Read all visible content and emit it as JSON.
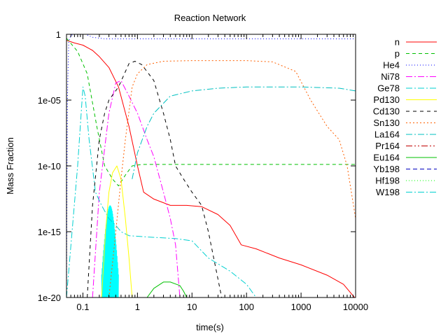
{
  "chart_data": {
    "type": "line",
    "title": "Reaction Network",
    "xlabel": "time(s)",
    "ylabel": "Mass Fraction",
    "xscale": "log",
    "yscale": "log",
    "xlim": [
      0.05,
      10000
    ],
    "ylim": [
      1e-20,
      1
    ],
    "xticks": [
      {
        "v": 0.1,
        "label": "0.1"
      },
      {
        "v": 1,
        "label": "1"
      },
      {
        "v": 10,
        "label": "10"
      },
      {
        "v": 100,
        "label": "100"
      },
      {
        "v": 1000,
        "label": "1000"
      },
      {
        "v": 10000,
        "label": "10000"
      }
    ],
    "yticks": [
      {
        "v": 1,
        "label": "1"
      },
      {
        "v": 1e-05,
        "label": "1e-05"
      },
      {
        "v": 1e-10,
        "label": "1e-10"
      },
      {
        "v": 1e-15,
        "label": "1e-15"
      },
      {
        "v": 1e-20,
        "label": "1e-20"
      }
    ],
    "grid": false,
    "legend_position": "right",
    "series": [
      {
        "name": "n",
        "color": "#ff0000",
        "dash": "",
        "points": [
          [
            0.05,
            0.35
          ],
          [
            0.07,
            0.22
          ],
          [
            0.1,
            0.15
          ],
          [
            0.15,
            0.06
          ],
          [
            0.2,
            0.02
          ],
          [
            0.3,
            0.003
          ],
          [
            0.45,
            0.0001
          ],
          [
            0.7,
            1e-07
          ],
          [
            1.0,
            1e-10
          ],
          [
            1.3,
            1e-12
          ],
          [
            2,
            3e-13
          ],
          [
            4,
            1e-13
          ],
          [
            8,
            1e-13
          ],
          [
            15,
            8e-14
          ],
          [
            30,
            2e-14
          ],
          [
            50,
            3e-15
          ],
          [
            80,
            1e-16
          ],
          [
            150,
            5e-17
          ],
          [
            400,
            1e-17
          ],
          [
            1000,
            3e-18
          ],
          [
            3000,
            5e-19
          ],
          [
            6000,
            1e-19
          ],
          [
            10000,
            8e-21
          ]
        ]
      },
      {
        "name": "p",
        "color": "#00c000",
        "dash": "5,4",
        "points": [
          [
            0.05,
            0.5
          ],
          [
            0.08,
            0.05
          ],
          [
            0.12,
            0.001
          ],
          [
            0.18,
            1e-07
          ],
          [
            0.25,
            1e-10
          ],
          [
            0.35,
            1e-11
          ],
          [
            0.45,
            3e-12
          ],
          [
            0.6,
            2e-11
          ],
          [
            0.8,
            1e-10
          ],
          [
            1.2,
            1.3e-10
          ],
          [
            10000,
            1.3e-10
          ]
        ]
      },
      {
        "name": "He4",
        "color": "#0000ff",
        "dash": "1,3",
        "points": [
          [
            0.05,
            1e-20
          ],
          [
            0.052,
            1e-05
          ],
          [
            0.055,
            0.3
          ],
          [
            0.06,
            0.8
          ],
          [
            0.08,
            1.4
          ],
          [
            0.1,
            1.2
          ],
          [
            0.15,
            0.6
          ],
          [
            0.25,
            0.45
          ],
          [
            0.5,
            0.45
          ],
          [
            10000,
            0.45
          ]
        ]
      },
      {
        "name": "Ni78",
        "color": "#ff00ff",
        "dash": "9,3,2,3",
        "points": [
          [
            0.15,
            1e-20
          ],
          [
            0.2,
            1e-12
          ],
          [
            0.3,
            1e-06
          ],
          [
            0.4,
            0.0002
          ],
          [
            0.5,
            0.0003
          ],
          [
            0.7,
            2e-05
          ],
          [
            1,
            1e-06
          ],
          [
            1.5,
            1e-08
          ],
          [
            2,
            5e-10
          ],
          [
            3,
            1e-12
          ],
          [
            4,
            1e-14
          ],
          [
            5,
            1e-16
          ],
          [
            6,
            1e-20
          ]
        ]
      },
      {
        "name": "Ge78",
        "color": "#00d0d0",
        "dash": "9,3,2,3",
        "points": [
          [
            0.05,
            1e-20
          ],
          [
            0.08,
            1e-10
          ],
          [
            0.1,
            0.0001
          ],
          [
            0.11,
            2e-05
          ],
          [
            0.13,
            1e-08
          ],
          [
            0.17,
            1e-12
          ],
          [
            0.22,
            1e-13
          ],
          [
            0.3,
            1e-14
          ],
          [
            0.4,
            3e-15
          ],
          [
            0.5,
            1e-15
          ],
          [
            0.7,
            5e-16
          ],
          [
            1.5,
            4e-16
          ],
          [
            5,
            3e-16
          ],
          [
            10,
            2e-16
          ],
          [
            20,
            1e-17
          ],
          [
            50,
            1e-18
          ],
          [
            100,
            1e-19
          ],
          [
            150,
            1e-20
          ]
        ]
      },
      {
        "name": "Pd130",
        "color": "#ffff00",
        "dash": "",
        "points": [
          [
            0.22,
            1e-20
          ],
          [
            0.26,
            1e-15
          ],
          [
            0.3,
            1e-12
          ],
          [
            0.35,
            3e-11
          ],
          [
            0.42,
            1e-10
          ],
          [
            0.5,
            1e-11
          ],
          [
            0.6,
            1e-14
          ],
          [
            0.7,
            1e-17
          ],
          [
            0.8,
            1e-20
          ]
        ]
      },
      {
        "name": "Cd130",
        "color": "#000000",
        "dash": "5,5",
        "points": [
          [
            0.12,
            1e-20
          ],
          [
            0.15,
            1e-13
          ],
          [
            0.2,
            1e-08
          ],
          [
            0.25,
            1e-06
          ],
          [
            0.3,
            1e-05
          ],
          [
            0.45,
            0.0001
          ],
          [
            0.7,
            0.006
          ],
          [
            0.9,
            0.009
          ],
          [
            1.2,
            0.005
          ],
          [
            2,
            0.0003
          ],
          [
            3,
            1e-06
          ],
          [
            4,
            1e-08
          ],
          [
            5,
            1e-10
          ],
          [
            7,
            1e-11
          ],
          [
            10,
            1e-12
          ],
          [
            15,
            1e-13
          ],
          [
            20,
            1e-15
          ],
          [
            28,
            1e-18
          ],
          [
            35,
            1e-20
          ]
        ]
      },
      {
        "name": "Sn130",
        "color": "#ff6000",
        "dash": "2,3",
        "points": [
          [
            0.3,
            1e-20
          ],
          [
            0.4,
            1e-15
          ],
          [
            0.5,
            1e-11
          ],
          [
            0.6,
            1e-08
          ],
          [
            0.8,
            0.0001
          ],
          [
            1,
            0.001
          ],
          [
            1.5,
            0.005
          ],
          [
            3,
            0.009
          ],
          [
            10,
            0.01
          ],
          [
            100,
            0.01
          ],
          [
            300,
            0.008
          ],
          [
            800,
            0.0015
          ],
          [
            1500,
            1e-05
          ],
          [
            3000,
            1e-07
          ],
          [
            5000,
            1e-08
          ],
          [
            7000,
            1e-10
          ],
          [
            10000,
            1e-14
          ]
        ]
      },
      {
        "name": "La164",
        "color": "#00c0c0",
        "dash": "9,3,2,3",
        "points": [
          [
            0.8,
            1e-11
          ],
          [
            1,
            1e-09
          ],
          [
            1.5,
            1e-07
          ],
          [
            2,
            1e-06
          ],
          [
            4,
            2e-05
          ],
          [
            10,
            5e-05
          ],
          [
            30,
            8e-05
          ],
          [
            100,
            0.0001
          ],
          [
            1000,
            0.0001
          ],
          [
            5000,
            8e-05
          ],
          [
            10000,
            5e-05
          ]
        ]
      },
      {
        "name": "Eu164",
        "color": "#00c000",
        "dash": "",
        "points": [
          [
            1.5,
            1e-20
          ],
          [
            2,
            5e-20
          ],
          [
            3,
            1.5e-19
          ],
          [
            4,
            1.5e-19
          ],
          [
            6,
            8e-20
          ],
          [
            7,
            3e-20
          ],
          [
            8,
            1e-20
          ]
        ]
      }
    ],
    "noise_band": {
      "name": "Ge78",
      "color": "#00ffff",
      "x_from": 0.22,
      "x_to": 0.45,
      "y_low": 1e-20,
      "y_high": 1e-13
    }
  }
}
